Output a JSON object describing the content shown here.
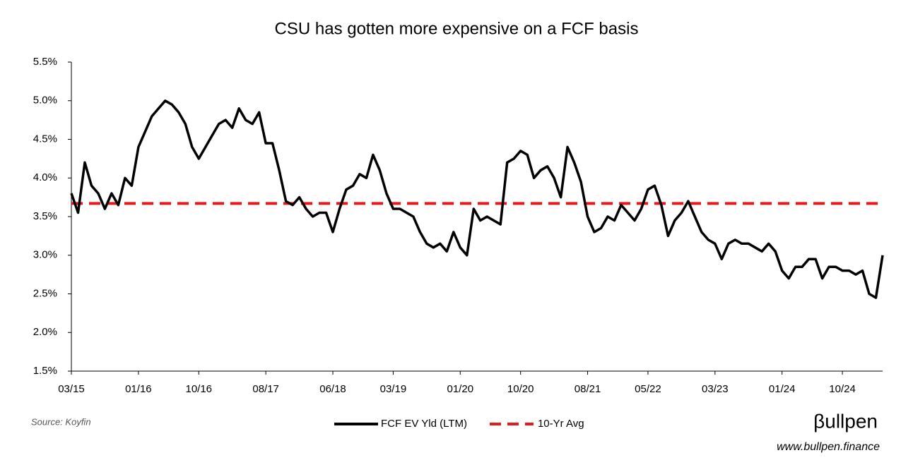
{
  "chart_data": {
    "type": "line",
    "title": "CSU has gotten more expensive on a FCF basis",
    "source": "Source: Koyfin",
    "brand": "βullpen",
    "url": "www.bullpen.finance",
    "categories": [
      "03/15",
      null,
      null,
      null,
      null,
      null,
      null,
      null,
      null,
      null,
      "01/16",
      null,
      null,
      null,
      null,
      null,
      null,
      null,
      null,
      "10/16",
      null,
      null,
      null,
      null,
      null,
      null,
      null,
      null,
      null,
      "08/17",
      null,
      null,
      null,
      null,
      null,
      null,
      null,
      null,
      null,
      "06/18",
      null,
      null,
      null,
      null,
      null,
      null,
      null,
      null,
      "03/19",
      null,
      null,
      null,
      null,
      null,
      null,
      null,
      null,
      null,
      "01/20",
      null,
      null,
      null,
      null,
      null,
      null,
      null,
      null,
      "10/20",
      null,
      null,
      null,
      null,
      null,
      null,
      null,
      null,
      null,
      "08/21",
      null,
      null,
      null,
      null,
      null,
      null,
      null,
      null,
      "05/22",
      null,
      null,
      null,
      null,
      null,
      null,
      null,
      null,
      null,
      "03/23",
      null,
      null,
      null,
      null,
      null,
      null,
      null,
      null,
      null,
      "01/24",
      null,
      null,
      null,
      null,
      null,
      null,
      null,
      null,
      "10/24",
      null,
      null,
      null,
      null,
      null,
      null
    ],
    "series": [
      {
        "name": "FCF EV Yld (LTM)",
        "color": "#000000",
        "values": [
          3.8,
          3.55,
          4.2,
          3.9,
          3.8,
          3.6,
          3.8,
          3.65,
          4.0,
          3.9,
          4.4,
          4.6,
          4.8,
          4.9,
          5.0,
          4.95,
          4.85,
          4.7,
          4.4,
          4.25,
          4.4,
          4.55,
          4.7,
          4.75,
          4.65,
          4.9,
          4.75,
          4.7,
          4.85,
          4.45,
          4.45,
          4.1,
          3.7,
          3.65,
          3.75,
          3.6,
          3.5,
          3.55,
          3.55,
          3.3,
          3.6,
          3.85,
          3.9,
          4.05,
          4.0,
          4.3,
          4.1,
          3.8,
          3.6,
          3.6,
          3.55,
          3.5,
          3.3,
          3.15,
          3.1,
          3.15,
          3.05,
          3.3,
          3.1,
          3.0,
          3.6,
          3.45,
          3.5,
          3.45,
          3.4,
          4.2,
          4.25,
          4.35,
          4.3,
          4.0,
          4.1,
          4.15,
          4.0,
          3.75,
          4.4,
          4.2,
          3.95,
          3.5,
          3.3,
          3.35,
          3.5,
          3.45,
          3.65,
          3.55,
          3.45,
          3.6,
          3.85,
          3.9,
          3.65,
          3.25,
          3.45,
          3.55,
          3.7,
          3.5,
          3.3,
          3.2,
          3.15,
          2.95,
          3.15,
          3.2,
          3.15,
          3.15,
          3.1,
          3.05,
          3.15,
          3.05,
          2.8,
          2.7,
          2.85,
          2.85,
          2.95,
          2.95,
          2.7,
          2.85,
          2.85,
          2.8,
          2.8,
          2.75,
          2.8,
          2.5,
          2.45,
          3.0
        ]
      }
    ],
    "reference_lines": [
      {
        "name": "10-Yr Avg",
        "value": 3.67,
        "color": "#e8191c"
      }
    ],
    "ylim": [
      1.5,
      5.5
    ],
    "yticks": [
      {
        "value": 1.5,
        "label": "1.5%"
      },
      {
        "value": 2.0,
        "label": "2.0%"
      },
      {
        "value": 2.5,
        "label": "2.5%"
      },
      {
        "value": 3.0,
        "label": "3.0%"
      },
      {
        "value": 3.5,
        "label": "3.5%"
      },
      {
        "value": 4.0,
        "label": "4.0%"
      },
      {
        "value": 4.5,
        "label": "4.5%"
      },
      {
        "value": 5.0,
        "label": "5.0%"
      },
      {
        "value": 5.5,
        "label": "5.5%"
      }
    ],
    "grid": false,
    "legend": "bottom"
  }
}
